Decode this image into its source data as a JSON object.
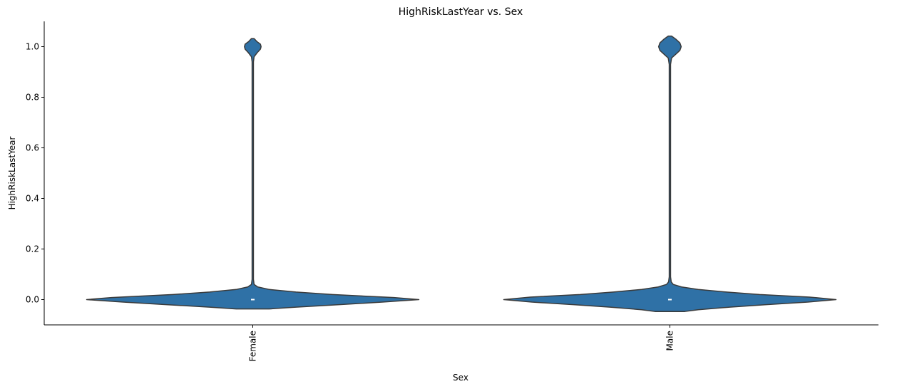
{
  "chart_data": {
    "type": "violin",
    "title": "HighRiskLastYear vs. Sex",
    "xlabel": "Sex",
    "ylabel": "HighRiskLastYear",
    "categories": [
      "Female",
      "Male"
    ],
    "ylim": [
      -0.1,
      1.1
    ],
    "yticks": [
      0.0,
      0.2,
      0.4,
      0.6,
      0.8,
      1.0
    ],
    "ytick_labels": [
      "0.0",
      "0.2",
      "0.4",
      "0.6",
      "0.8",
      "1.0"
    ],
    "grid": false,
    "fill_color": "#2f71a6",
    "edge_color": "#3a3a3a",
    "violins": [
      {
        "category": "Female",
        "median": 0.0,
        "profile": [
          [
            -0.037,
            0.1
          ],
          [
            -0.03,
            0.26
          ],
          [
            -0.02,
            0.52
          ],
          [
            -0.01,
            0.78
          ],
          [
            0.0,
            1.0
          ],
          [
            0.008,
            0.85
          ],
          [
            0.02,
            0.48
          ],
          [
            0.03,
            0.26
          ],
          [
            0.04,
            0.1
          ],
          [
            0.05,
            0.03
          ],
          [
            0.06,
            0.008
          ],
          [
            0.08,
            0.004
          ],
          [
            0.94,
            0.004
          ],
          [
            0.96,
            0.008
          ],
          [
            0.975,
            0.025
          ],
          [
            0.99,
            0.046
          ],
          [
            1.0,
            0.05
          ],
          [
            1.01,
            0.046
          ],
          [
            1.02,
            0.025
          ],
          [
            1.032,
            0.008
          ]
        ]
      },
      {
        "category": "Male",
        "median": 0.0,
        "profile": [
          [
            -0.047,
            0.09
          ],
          [
            -0.04,
            0.17
          ],
          [
            -0.03,
            0.36
          ],
          [
            -0.02,
            0.58
          ],
          [
            -0.01,
            0.83
          ],
          [
            0.0,
            1.0
          ],
          [
            0.01,
            0.84
          ],
          [
            0.02,
            0.54
          ],
          [
            0.03,
            0.34
          ],
          [
            0.04,
            0.17
          ],
          [
            0.05,
            0.07
          ],
          [
            0.06,
            0.02
          ],
          [
            0.07,
            0.008
          ],
          [
            0.09,
            0.004
          ],
          [
            0.93,
            0.004
          ],
          [
            0.955,
            0.01
          ],
          [
            0.97,
            0.035
          ],
          [
            0.985,
            0.06
          ],
          [
            1.0,
            0.068
          ],
          [
            1.015,
            0.06
          ],
          [
            1.03,
            0.035
          ],
          [
            1.042,
            0.01
          ]
        ]
      }
    ]
  }
}
